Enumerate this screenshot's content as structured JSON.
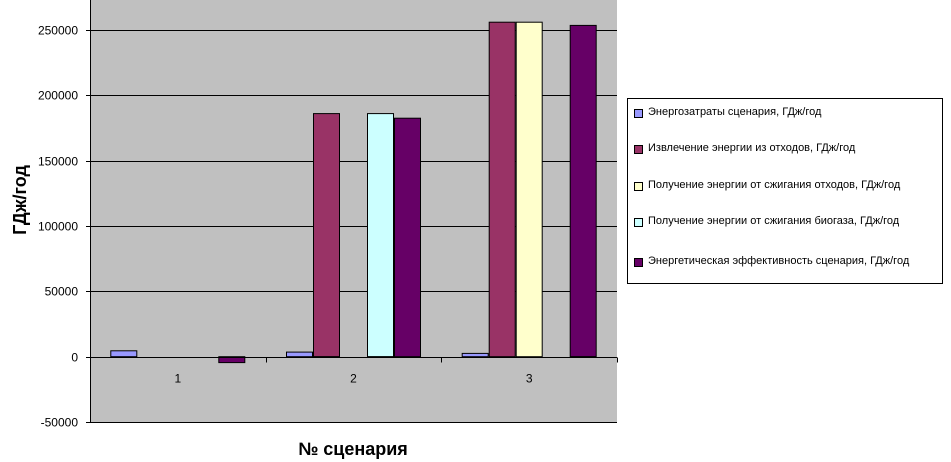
{
  "chart_data": {
    "type": "bar",
    "categories": [
      "1",
      "2",
      "3"
    ],
    "series": [
      {
        "name": "Энергозатраты сценария, ГДж/год",
        "color": "#9999ff",
        "values": [
          4500,
          3500,
          2500
        ]
      },
      {
        "name": "Извлечение энергии из отходов, ГДж/год",
        "color": "#993366",
        "values": [
          0,
          186000,
          256000
        ]
      },
      {
        "name": "Получение энергии от сжигания отходов, ГДж/год",
        "color": "#ffffcc",
        "values": [
          0,
          0,
          256000
        ]
      },
      {
        "name": "Получение энергии от сжигания биогаза, ГДж/год",
        "color": "#ccffff",
        "values": [
          0,
          186000,
          0
        ]
      },
      {
        "name": "Энергетическая эффективность сценария, ГДж/год",
        "color": "#660066",
        "values": [
          -4500,
          182500,
          253500
        ]
      }
    ],
    "xlabel": "№ сценария",
    "ylabel": "ГДж/год",
    "ylim": [
      -50000,
      250000
    ],
    "yticks": [
      -50000,
      0,
      50000,
      100000,
      150000,
      200000,
      250000
    ],
    "ytick_labels": [
      "-50000",
      "0",
      "50000",
      "100000",
      "150000",
      "200000",
      "250000"
    ],
    "grid": true,
    "legend_position": "right",
    "plot_background": "#c0c0c0"
  }
}
